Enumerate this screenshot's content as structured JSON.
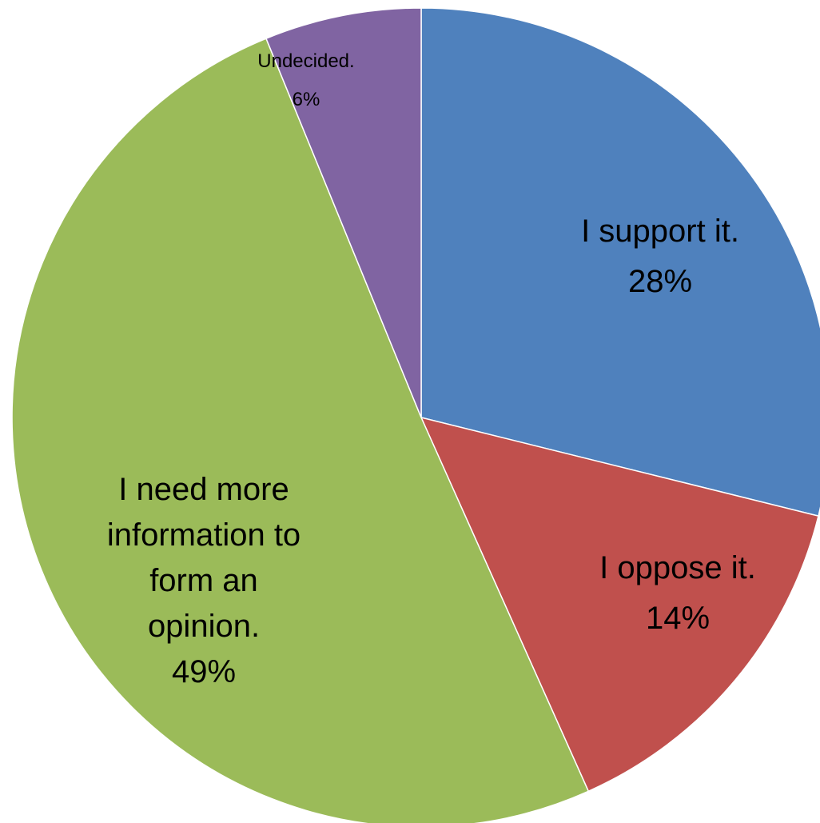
{
  "chart_data": {
    "type": "pie",
    "categories": [
      "I support it.",
      "I oppose it.",
      "I need more information to form an opinion.",
      "Undecided."
    ],
    "values": [
      28,
      14,
      49,
      6
    ],
    "data_labels": [
      "28%",
      "14%",
      "49%",
      "6%"
    ],
    "colors": [
      "#4F81BD",
      "#C0504D",
      "#9BBB59",
      "#8064A2"
    ],
    "label_lines": [
      [
        "I support it.",
        "28%"
      ],
      [
        "I oppose it.",
        "14%"
      ],
      [
        "I need more",
        "information to",
        "form an",
        "opinion.",
        "49%"
      ],
      [
        "Undecided.",
        "6%"
      ]
    ],
    "start_angle": "12 o'clock",
    "direction": "clockwise",
    "title": "",
    "legend": "none"
  }
}
